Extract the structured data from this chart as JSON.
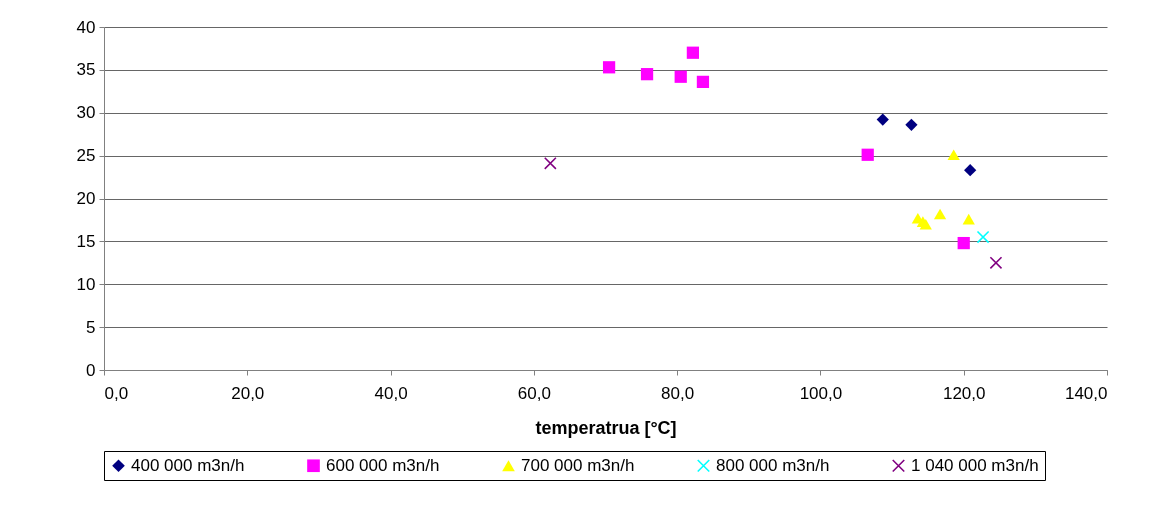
{
  "chart_data": {
    "type": "scatter",
    "xlabel": "temperatrua  [°C]",
    "xlim": [
      0,
      140
    ],
    "xticks": [
      {
        "value": 0,
        "label": "0,0"
      },
      {
        "value": 20,
        "label": "20,0"
      },
      {
        "value": 40,
        "label": "40,0"
      },
      {
        "value": 60,
        "label": "60,0"
      },
      {
        "value": 80,
        "label": "80,0"
      },
      {
        "value": 100,
        "label": "100,0"
      },
      {
        "value": 120,
        "label": "120,0"
      },
      {
        "value": 140,
        "label": "140,0"
      }
    ],
    "ylim": [
      0,
      40
    ],
    "yticks": [
      0,
      5,
      10,
      15,
      20,
      25,
      30,
      35,
      40
    ],
    "grid": "y",
    "legend": "bottom",
    "series": [
      {
        "name": "400 000 m3n/h",
        "color": "#000080",
        "marker": "diamond",
        "x": [
          108.7,
          112.7,
          120.9
        ],
        "values": [
          29.2,
          28.6,
          23.3
        ]
      },
      {
        "name": "600 000 m3n/h",
        "color": "#ff00ff",
        "marker": "square",
        "x": [
          70.5,
          75.8,
          80.5,
          82.2,
          83.6,
          106.6,
          120.0
        ],
        "values": [
          35.3,
          34.5,
          34.2,
          37.0,
          33.6,
          25.1,
          14.8
        ]
      },
      {
        "name": "700 000 m3n/h",
        "color": "#ffff00",
        "marker": "triangle",
        "x": [
          113.6,
          114.3,
          114.7,
          116.7,
          120.7,
          118.6
        ],
        "values": [
          17.7,
          17.3,
          17.0,
          18.2,
          17.6,
          25.1
        ]
      },
      {
        "name": "800 000 m3n/h",
        "color": "#00ffff",
        "marker": "cross",
        "x": [
          122.7
        ],
        "values": [
          15.5
        ]
      },
      {
        "name": "1 040 000 m3n/h",
        "color": "#800080",
        "marker": "cross",
        "x": [
          62.3,
          124.5
        ],
        "values": [
          24.1,
          12.5
        ]
      }
    ]
  }
}
